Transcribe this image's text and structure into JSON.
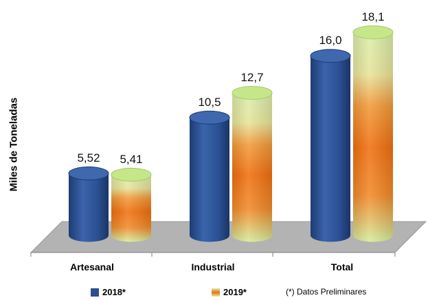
{
  "chart_data": {
    "type": "bar",
    "categories": [
      "Artesanal",
      "Industrial",
      "Total"
    ],
    "series": [
      {
        "name": "2018*",
        "values": [
          5.52,
          10.5,
          16.0
        ],
        "labels": [
          "5,52",
          "10,5",
          "16,0"
        ],
        "color": "#2a4f91"
      },
      {
        "name": "2019*",
        "values": [
          5.41,
          12.7,
          18.1
        ],
        "labels": [
          "5,41",
          "12,7",
          "18,1"
        ],
        "color": "#f07a12"
      }
    ],
    "ylabel": "Miles de Toneladas",
    "ylim": [
      0,
      20
    ],
    "grid": false,
    "legend_position": "bottom",
    "note": "(*) Datos Preliminares"
  },
  "colors": {
    "blue_body": "#2a4f91",
    "blue_light": "#4f79bf",
    "orange": "#f07a12",
    "green_light": "#d4eba6",
    "floor": "#b0b0b0"
  }
}
